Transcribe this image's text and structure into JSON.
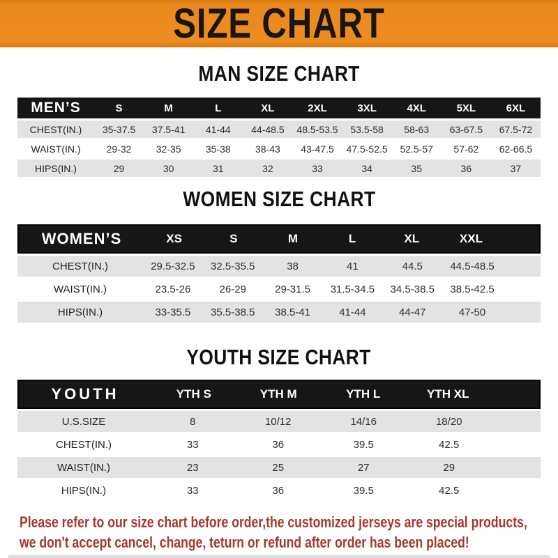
{
  "banner": {
    "title": "SIZE CHART"
  },
  "colors": {
    "banner_bg": "#EC8C20",
    "table_header_bg": "#161616",
    "row_alt_bg": "#E3E3E3",
    "footer_text": "#A4382E"
  },
  "sections": [
    {
      "heading": "MAN SIZE CHART",
      "table": {
        "label": "MEN’S",
        "columns": [
          "S",
          "M",
          "L",
          "XL",
          "2XL",
          "3XL",
          "4XL",
          "5XL",
          "6XL"
        ],
        "rows": [
          {
            "label": "CHEST(IN.)",
            "values": [
              "35-37.5",
              "37.5-41",
              "41-44",
              "44-48.5",
              "48.5-53.5",
              "53.5-58",
              "58-63",
              "63-67.5",
              "67.5-72"
            ]
          },
          {
            "label": "WAIST(IN.)",
            "values": [
              "29-32",
              "32-35",
              "35-38",
              "38-43",
              "43-47.5",
              "47.5-52.5",
              "52.5-57",
              "57-62",
              "62-66.5"
            ]
          },
          {
            "label": "HIPS(IN.)",
            "values": [
              "29",
              "30",
              "31",
              "32",
              "33",
              "34",
              "35",
              "36",
              "37"
            ]
          }
        ]
      }
    },
    {
      "heading": "WOMEN SIZE CHART",
      "table": {
        "label": "WOMEN’S",
        "columns": [
          "XS",
          "S",
          "M",
          "L",
          "XL",
          "XXL"
        ],
        "rows": [
          {
            "label": "CHEST(IN.)",
            "values": [
              "29.5-32.5",
              "32.5-35.5",
              "38",
              "41",
              "44.5",
              "44.5-48.5"
            ]
          },
          {
            "label": "WAIST(IN.)",
            "values": [
              "23.5-26",
              "26-29",
              "29-31.5",
              "31.5-34.5",
              "34.5-38.5",
              "38.5-42.5"
            ]
          },
          {
            "label": "HIPS(IN.)",
            "values": [
              "33-35.5",
              "35.5-38.5",
              "38.5-41",
              "41-44",
              "44-47",
              "47-50"
            ]
          }
        ]
      }
    },
    {
      "heading": "YOUTH SIZE CHART",
      "table": {
        "label": "YOUTH",
        "columns": [
          "YTH S",
          "YTH M",
          "YTH L",
          "YTH XL"
        ],
        "rows": [
          {
            "label": "U.S.SIZE",
            "values": [
              "8",
              "10/12",
              "14/16",
              "18/20"
            ]
          },
          {
            "label": "CHEST(IN.)",
            "values": [
              "33",
              "36",
              "39.5",
              "42.5"
            ]
          },
          {
            "label": "WAIST(IN.)",
            "values": [
              "23",
              "25",
              "27",
              "29"
            ]
          },
          {
            "label": "HIPS(IN.)",
            "values": [
              "33",
              "36",
              "39.5",
              "42.5"
            ]
          }
        ]
      }
    }
  ],
  "footer": {
    "line1": "Please refer to our size chart before order,the customized jerseys are special products,",
    "line2": "we don't accept cancel, change, teturn or refund after order has been placed!"
  }
}
